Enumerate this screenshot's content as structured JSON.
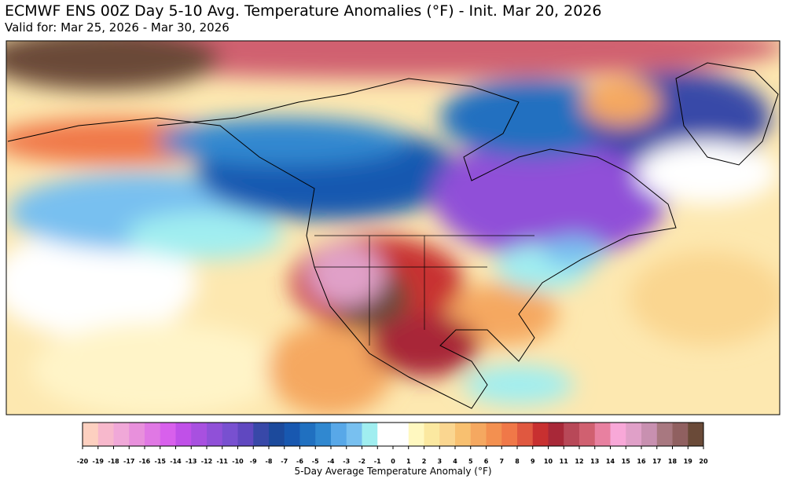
{
  "header": {
    "title": "ECMWF ENS 00Z Day 5-10 Avg. Temperature Anomalies (°F) - Init. Mar 20, 2026",
    "subtitle": "Valid for: Mar 25, 2026 - Mar 30, 2026"
  },
  "colorbar": {
    "label": "5-Day Average Temperature Anomaly (°F)",
    "ticks": [
      -20,
      -19,
      -18,
      -17,
      -16,
      -15,
      -14,
      -13,
      -12,
      -11,
      -10,
      -9,
      -8,
      -7,
      -6,
      -5,
      -4,
      -3,
      -2,
      -1,
      0,
      1,
      2,
      3,
      4,
      5,
      6,
      7,
      8,
      9,
      10,
      11,
      12,
      13,
      14,
      15,
      16,
      17,
      18,
      19,
      20
    ],
    "colors": [
      "#fdd0c0",
      "#f7b8cc",
      "#f0a8d8",
      "#e890dc",
      "#e078e4",
      "#d860ec",
      "#c050e8",
      "#a850e0",
      "#9050d8",
      "#7850d0",
      "#6048c0",
      "#3848a8",
      "#1c4a9c",
      "#1858b0",
      "#2070c0",
      "#3088d0",
      "#58a8e8",
      "#78c0f0",
      "#a0eef0",
      "#ffffff",
      "#ffffff",
      "#fff8c0",
      "#fbe8a0",
      "#fad690",
      "#f8c070",
      "#f5a860",
      "#f39050",
      "#f07848",
      "#e05840",
      "#c83030",
      "#a82838",
      "#b84858",
      "#d06070",
      "#e880a0",
      "#f8a8d8",
      "#e0a0c8",
      "#c890b0",
      "#a87880",
      "#906060",
      "#6a4a38"
    ]
  }
}
